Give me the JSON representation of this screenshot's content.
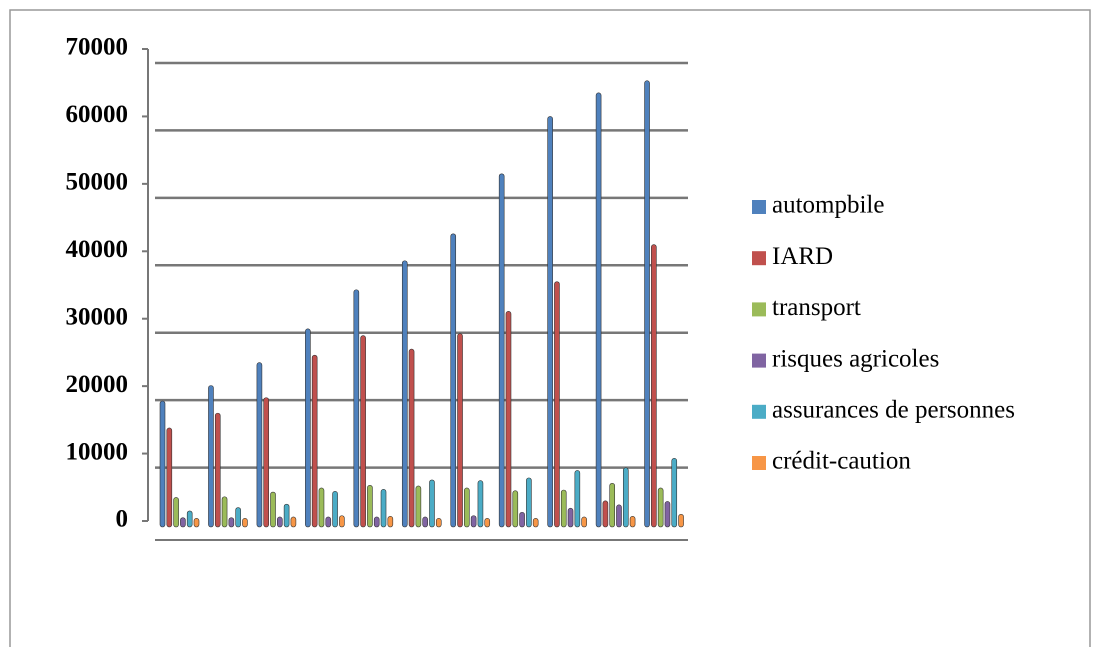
{
  "chart_data": {
    "type": "bar",
    "categories": [
      null,
      null,
      null,
      null,
      null,
      null,
      null,
      null,
      null,
      null,
      null
    ],
    "series": [
      {
        "name": "autompbile",
        "color": "#4f81bd",
        "values": [
          17500,
          19800,
          23200,
          28200,
          34000,
          38300,
          42300,
          51200,
          59700,
          63200,
          65000
        ]
      },
      {
        "name": "IARD",
        "color": "#c0504d",
        "values": [
          13500,
          15700,
          18000,
          24300,
          27200,
          25200,
          27500,
          30800,
          35200,
          2700,
          40700
        ]
      },
      {
        "name": "transport",
        "color": "#9bbb59",
        "values": [
          3200,
          3300,
          4000,
          4600,
          5000,
          4900,
          4600,
          4200,
          4300,
          5300,
          4600
        ]
      },
      {
        "name": "risques agricoles",
        "color": "#8064a2",
        "values": [
          200,
          200,
          300,
          300,
          300,
          300,
          500,
          1000,
          1600,
          2100,
          2600
        ]
      },
      {
        "name": "assurances de personnes",
        "color": "#4bacc6",
        "values": [
          1200,
          1700,
          2200,
          4100,
          4400,
          5800,
          5700,
          6100,
          7200,
          7600,
          9000
        ]
      },
      {
        "name": "crédit-caution",
        "color": "#f79646",
        "values": [
          100,
          100,
          300,
          500,
          400,
          100,
          100,
          100,
          300,
          400,
          700
        ]
      }
    ],
    "ylim": [
      0,
      70000
    ],
    "yticks": [
      0,
      10000,
      20000,
      30000,
      40000,
      50000,
      60000,
      70000
    ],
    "grid": true,
    "legend": "right"
  }
}
